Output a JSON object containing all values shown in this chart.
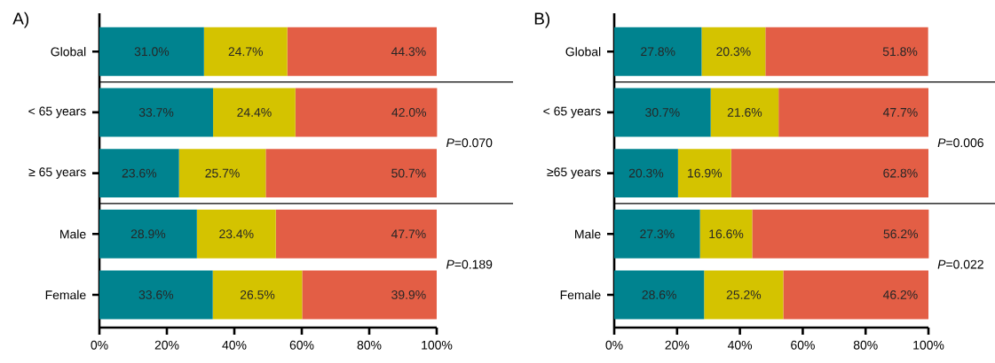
{
  "chart_data": [
    {
      "type": "bar",
      "orientation": "horizontal",
      "stacked": true,
      "title": "A)",
      "grid": false,
      "categories": [
        "Global",
        "< 65 years",
        "≥ 65 years",
        "Male",
        "Female"
      ],
      "series": [
        {
          "color": "#00838f",
          "values": [
            31.0,
            33.7,
            23.6,
            28.9,
            33.6
          ],
          "value_labels": [
            "31.0%",
            "33.7%",
            "23.6%",
            "28.9%",
            "33.6%"
          ]
        },
        {
          "color": "#d4c300",
          "values": [
            24.7,
            24.4,
            25.7,
            23.4,
            26.5
          ],
          "value_labels": [
            "24.7%",
            "24.4%",
            "25.7%",
            "23.4%",
            "26.5%"
          ]
        },
        {
          "color": "#e35e45",
          "values": [
            44.3,
            42.0,
            50.7,
            47.7,
            39.9
          ],
          "value_labels": [
            "44.3%",
            "42.0%",
            "50.7%",
            "47.7%",
            "39.9%"
          ]
        }
      ],
      "xlim": [
        0,
        100
      ],
      "xticks": [
        {
          "value": 0,
          "label": "0%"
        },
        {
          "value": 20,
          "label": "20%"
        },
        {
          "value": 40,
          "label": "40%"
        },
        {
          "value": 60,
          "label": "60%"
        },
        {
          "value": 80,
          "label": "80%"
        },
        {
          "value": 100,
          "label": "100%"
        }
      ],
      "annotations": [
        "*P*=0.070",
        "*P*=0.189"
      ]
    },
    {
      "type": "bar",
      "orientation": "horizontal",
      "stacked": true,
      "title": "B)",
      "grid": false,
      "categories": [
        "Global",
        "< 65 years",
        "≥65 years",
        "Male",
        "Female"
      ],
      "series": [
        {
          "color": "#00838f",
          "values": [
            27.8,
            30.7,
            20.3,
            27.3,
            28.6
          ],
          "value_labels": [
            "27.8%",
            "30.7%",
            "20.3%",
            "27.3%",
            "28.6%"
          ]
        },
        {
          "color": "#d4c300",
          "values": [
            20.3,
            21.6,
            16.9,
            16.6,
            25.2
          ],
          "value_labels": [
            "20.3%",
            "21.6%",
            "16.9%",
            "16.6%",
            "25.2%"
          ]
        },
        {
          "color": "#e35e45",
          "values": [
            51.8,
            47.7,
            62.8,
            56.2,
            46.2
          ],
          "value_labels": [
            "51.8%",
            "47.7%",
            "62.8%",
            "56.2%",
            "46.2%"
          ]
        }
      ],
      "xlim": [
        0,
        100
      ],
      "xticks": [
        {
          "value": 0,
          "label": "0%"
        },
        {
          "value": 20,
          "label": "20%"
        },
        {
          "value": 40,
          "label": "40%"
        },
        {
          "value": 60,
          "label": "60%"
        },
        {
          "value": 80,
          "label": "80%"
        },
        {
          "value": 100,
          "label": "100%"
        }
      ],
      "annotations": [
        "*P*=0.006",
        "*P*=0.022"
      ]
    }
  ]
}
